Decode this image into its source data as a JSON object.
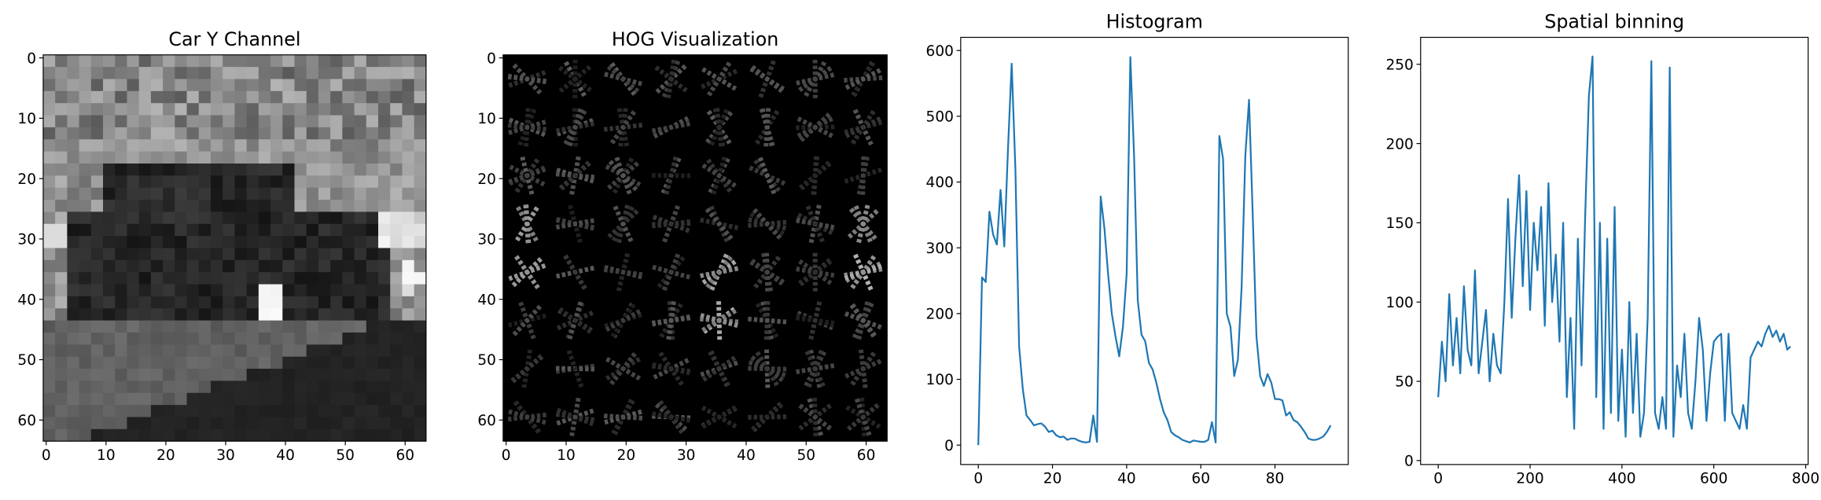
{
  "chart_data": [
    {
      "type": "image",
      "title": "Car Y Channel",
      "xlim": [
        -0.5,
        63.5
      ],
      "ylim": [
        63.5,
        -0.5
      ],
      "xticks": [
        0,
        10,
        20,
        30,
        40,
        50,
        60
      ],
      "yticks": [
        0,
        10,
        20,
        30,
        40,
        50,
        60
      ]
    },
    {
      "type": "image",
      "title": "HOG Visualization",
      "xlim": [
        -0.5,
        63.5
      ],
      "ylim": [
        63.5,
        -0.5
      ],
      "xticks": [
        0,
        10,
        20,
        30,
        40,
        50,
        60
      ],
      "yticks": [
        0,
        10,
        20,
        30,
        40,
        50,
        60
      ]
    },
    {
      "type": "line",
      "title": "Histogram",
      "color": "#1f77b4",
      "xlim": [
        -4.75,
        99.75
      ],
      "ylim": [
        -29.5,
        620
      ],
      "xticks": [
        0,
        20,
        40,
        60,
        80
      ],
      "yticks": [
        0,
        100,
        200,
        300,
        400,
        500,
        600
      ],
      "values": [
        0,
        255,
        248,
        355,
        320,
        305,
        388,
        302,
        450,
        580,
        420,
        150,
        85,
        45,
        38,
        30,
        32,
        33,
        28,
        20,
        22,
        15,
        12,
        13,
        8,
        10,
        10,
        7,
        5,
        4,
        5,
        45,
        5,
        378,
        330,
        260,
        200,
        165,
        135,
        180,
        260,
        590,
        440,
        220,
        168,
        158,
        125,
        115,
        95,
        70,
        50,
        38,
        20,
        15,
        12,
        8,
        6,
        4,
        7,
        6,
        5,
        5,
        8,
        35,
        4,
        470,
        435,
        200,
        180,
        105,
        130,
        240,
        440,
        525,
        350,
        165,
        105,
        90,
        108,
        95,
        70,
        70,
        68,
        45,
        50,
        38,
        35,
        28,
        20,
        10,
        8,
        8,
        10,
        13,
        20,
        30
      ]
    },
    {
      "type": "line",
      "title": "Spatial binning",
      "color": "#1f77b4",
      "xlim": [
        -38.35,
        805.35
      ],
      "ylim": [
        -2.5,
        267
      ],
      "xticks": [
        0,
        200,
        400,
        600,
        800
      ],
      "yticks": [
        0,
        50,
        100,
        150,
        200,
        250
      ],
      "x": [
        0,
        8,
        16,
        24,
        32,
        40,
        48,
        56,
        64,
        72,
        80,
        88,
        96,
        104,
        112,
        120,
        128,
        136,
        144,
        152,
        160,
        168,
        176,
        184,
        192,
        200,
        208,
        216,
        224,
        232,
        240,
        248,
        256,
        264,
        272,
        280,
        288,
        296,
        304,
        312,
        320,
        328,
        336,
        344,
        352,
        360,
        368,
        376,
        384,
        392,
        400,
        408,
        416,
        424,
        432,
        440,
        448,
        456,
        464,
        472,
        480,
        488,
        496,
        504,
        512,
        520,
        528,
        536,
        544,
        552,
        560,
        568,
        576,
        584,
        592,
        600,
        608,
        616,
        624,
        632,
        640,
        648,
        656,
        664,
        672,
        680,
        688,
        696,
        704,
        712,
        720,
        728,
        736,
        744,
        752,
        760,
        767
      ],
      "values": [
        40,
        75,
        50,
        105,
        60,
        90,
        55,
        110,
        70,
        60,
        120,
        55,
        75,
        95,
        50,
        80,
        60,
        55,
        100,
        165,
        90,
        140,
        180,
        110,
        170,
        95,
        150,
        120,
        160,
        85,
        175,
        100,
        130,
        75,
        150,
        40,
        90,
        20,
        140,
        60,
        155,
        230,
        255,
        40,
        150,
        20,
        140,
        30,
        160,
        25,
        70,
        15,
        100,
        30,
        80,
        15,
        30,
        90,
        252,
        30,
        20,
        40,
        20,
        248,
        15,
        60,
        40,
        80,
        30,
        20,
        50,
        90,
        70,
        25,
        55,
        75,
        78,
        80,
        25,
        80,
        30,
        25,
        20,
        35,
        20,
        65,
        70,
        75,
        72,
        80,
        85,
        78,
        82,
        75,
        80,
        70,
        72
      ]
    }
  ]
}
